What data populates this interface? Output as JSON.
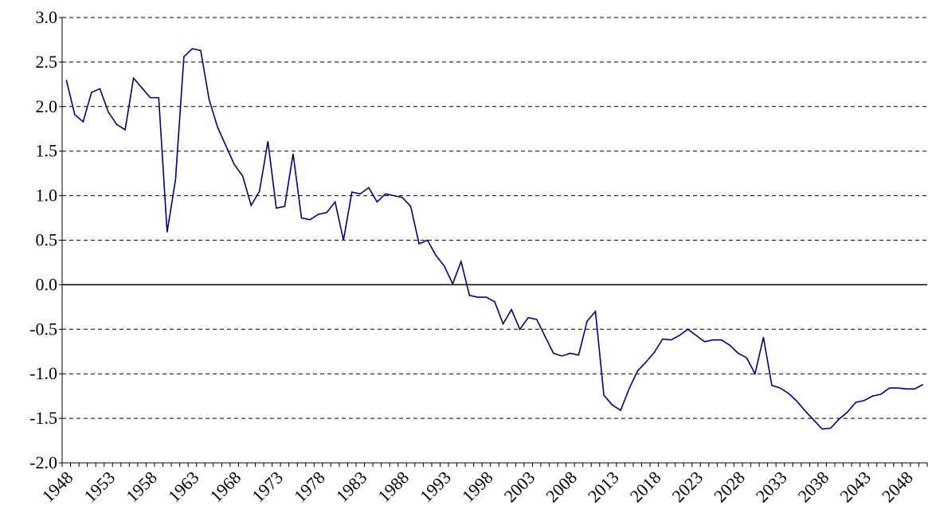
{
  "chart_data": {
    "type": "line",
    "categories": [
      "1948",
      null,
      null,
      null,
      null,
      "1953",
      null,
      null,
      null,
      null,
      "1958",
      null,
      null,
      null,
      null,
      "1963",
      null,
      null,
      null,
      null,
      "1968",
      null,
      null,
      null,
      null,
      "1973",
      null,
      null,
      null,
      null,
      "1978",
      null,
      null,
      null,
      null,
      "1983",
      null,
      null,
      null,
      null,
      "1988",
      null,
      null,
      null,
      null,
      "1993",
      null,
      null,
      null,
      null,
      "1998",
      null,
      null,
      null,
      null,
      "2003",
      null,
      null,
      null,
      null,
      "2008",
      null,
      null,
      null,
      null,
      "2013",
      null,
      null,
      null,
      null,
      "2018",
      null,
      null,
      null,
      null,
      "2023",
      null,
      null,
      null,
      null,
      "2028",
      null,
      null,
      null,
      null,
      "2033",
      null,
      null,
      null,
      null,
      "2038",
      null,
      null,
      null,
      null,
      "2043",
      null,
      null,
      null,
      null,
      "2048",
      null,
      null
    ],
    "values": [
      2.3,
      1.91,
      1.83,
      2.16,
      2.2,
      1.94,
      1.8,
      1.74,
      2.32,
      2.21,
      2.1,
      2.1,
      0.59,
      1.18,
      2.56,
      2.65,
      2.63,
      2.08,
      1.77,
      1.56,
      1.35,
      1.22,
      0.89,
      1.05,
      1.61,
      0.86,
      0.88,
      1.47,
      0.75,
      0.73,
      0.79,
      0.81,
      0.93,
      0.5,
      1.04,
      1.02,
      1.09,
      0.93,
      1.02,
      1.0,
      0.98,
      0.88,
      0.46,
      0.5,
      0.33,
      0.21,
      0.01,
      0.26,
      -0.12,
      -0.14,
      -0.14,
      -0.19,
      -0.44,
      -0.28,
      -0.5,
      -0.37,
      -0.39,
      -0.58,
      -0.77,
      -0.8,
      -0.77,
      -0.79,
      -0.41,
      -0.3,
      -1.24,
      -1.35,
      -1.41,
      -1.17,
      -0.97,
      -0.87,
      -0.76,
      -0.61,
      -0.62,
      -0.57,
      -0.5,
      -0.57,
      -0.64,
      -0.62,
      -0.62,
      -0.68,
      -0.77,
      -0.82,
      -1.0,
      -0.59,
      -1.13,
      -1.16,
      -1.22,
      -1.31,
      -1.42,
      -1.52,
      -1.62,
      -1.61,
      -1.51,
      -1.43,
      -1.32,
      -1.3,
      -1.25,
      -1.23,
      -1.16,
      -1.16,
      -1.17,
      -1.17,
      -1.12
    ],
    "color": "#000080",
    "ylim": [
      -2,
      3
    ],
    "yticks": [
      {
        "value": -2,
        "label": "-2.0"
      },
      {
        "value": -1.5,
        "label": "-1.5"
      },
      {
        "value": -1,
        "label": "-1.0"
      },
      {
        "value": -0.5,
        "label": "-0.5"
      },
      {
        "value": 0,
        "label": "0.0"
      },
      {
        "value": 0.5,
        "label": "0.5"
      },
      {
        "value": 1,
        "label": "1.0"
      },
      {
        "value": 1.5,
        "label": "1.5"
      },
      {
        "value": 2,
        "label": "2.0"
      },
      {
        "value": 2.5,
        "label": "2.5"
      },
      {
        "value": 3,
        "label": "3.0"
      }
    ],
    "grid": true
  }
}
